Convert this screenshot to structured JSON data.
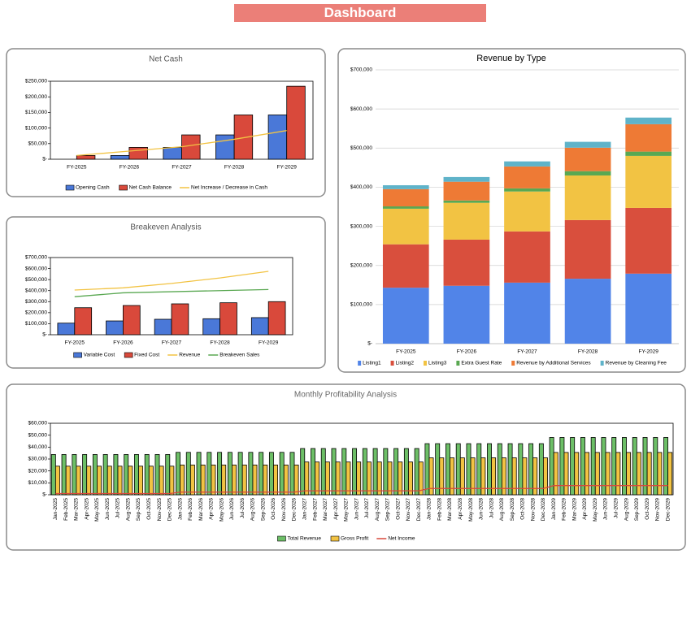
{
  "header": {
    "title": "Dashboard"
  },
  "chart_data": [
    {
      "type": "bar",
      "title": "Net Cash",
      "categories": [
        "FY-2025",
        "FY-2026",
        "FY-2027",
        "FY-2028",
        "FY-2029"
      ],
      "series": [
        {
          "name": "Opening Cash",
          "color": "#4a78d8",
          "values": [
            0,
            12000,
            38000,
            78000,
            142000
          ]
        },
        {
          "name": "Net Cash Balance",
          "color": "#d9493b",
          "values": [
            12000,
            38000,
            78000,
            142000,
            234000
          ]
        },
        {
          "name": "Net Increase / Decrease in Cash",
          "type": "line",
          "color": "#f2c343",
          "values": [
            12000,
            26000,
            40000,
            64000,
            92000
          ]
        }
      ],
      "ylim": [
        0,
        250000
      ],
      "yticks": [
        {
          "value": 0,
          "label": "$-"
        },
        {
          "value": 50000,
          "label": "$50,000"
        },
        {
          "value": 100000,
          "label": "$100,000"
        },
        {
          "value": 150000,
          "label": "$150,000"
        },
        {
          "value": 200000,
          "label": "$200,000"
        },
        {
          "value": 250000,
          "label": "$250,000"
        }
      ],
      "grid": false,
      "legend": "bottom"
    },
    {
      "type": "bar",
      "title": "Breakeven Analysis",
      "categories": [
        "FY-2025",
        "FY-2026",
        "FY-2027",
        "FY-2028",
        "FY-2029"
      ],
      "series": [
        {
          "name": "Variable Cost",
          "color": "#4a78d8",
          "values": [
            105000,
            125000,
            140000,
            145000,
            155000
          ]
        },
        {
          "name": "Fixed Cost",
          "color": "#d9493b",
          "values": [
            245000,
            265000,
            280000,
            290000,
            300000
          ]
        },
        {
          "name": "Revenue",
          "type": "line",
          "color": "#f2c343",
          "values": [
            405000,
            425000,
            465000,
            515000,
            575000
          ]
        },
        {
          "name": "Breakeven Sales",
          "type": "line",
          "color": "#5aa852",
          "values": [
            345000,
            380000,
            390000,
            400000,
            410000
          ]
        }
      ],
      "ylim": [
        0,
        700000
      ],
      "yticks": [
        {
          "value": 0,
          "label": "$-"
        },
        {
          "value": 100000,
          "label": "$100,000"
        },
        {
          "value": 200000,
          "label": "$200,000"
        },
        {
          "value": 300000,
          "label": "$300,000"
        },
        {
          "value": 400000,
          "label": "$400,000"
        },
        {
          "value": 500000,
          "label": "$500,000"
        },
        {
          "value": 600000,
          "label": "$600,000"
        },
        {
          "value": 700000,
          "label": "$700,000"
        }
      ],
      "grid": false,
      "legend": "bottom"
    },
    {
      "type": "bar",
      "stacked": true,
      "title": "Revenue by Type",
      "categories": [
        "FY-2025",
        "FY-2026",
        "FY-2027",
        "FY-2028",
        "FY-2029"
      ],
      "series": [
        {
          "name": "Listing1",
          "color": "#5184e8",
          "values": [
            143000,
            148000,
            156000,
            166000,
            179000
          ]
        },
        {
          "name": "Listing2",
          "color": "#d94f3d",
          "values": [
            111000,
            118000,
            131000,
            150000,
            168000
          ]
        },
        {
          "name": "Listing3",
          "color": "#f2c343",
          "values": [
            91000,
            94000,
            102000,
            114000,
            133000
          ]
        },
        {
          "name": "Extra Guest Rate",
          "color": "#5aa852",
          "values": [
            6000,
            6000,
            8000,
            11000,
            11000
          ]
        },
        {
          "name": "Revenue by Additional Services",
          "color": "#ee7a35",
          "values": [
            44000,
            48000,
            56000,
            60000,
            70000
          ]
        },
        {
          "name": "Revenue by Cleaning Fee",
          "color": "#5fb3c9",
          "values": [
            10000,
            12000,
            13000,
            15000,
            17000
          ]
        }
      ],
      "ylim": [
        0,
        700000
      ],
      "yticks": [
        {
          "value": 0,
          "label": "$-"
        },
        {
          "value": 100000,
          "label": "$100,000"
        },
        {
          "value": 200000,
          "label": "$200,000"
        },
        {
          "value": 300000,
          "label": "$300,000"
        },
        {
          "value": 400000,
          "label": "$400,000"
        },
        {
          "value": 500000,
          "label": "$500,000"
        },
        {
          "value": 600000,
          "label": "$600,000"
        },
        {
          "value": 700000,
          "label": "$700,000"
        }
      ],
      "grid": true,
      "legend": "bottom"
    },
    {
      "type": "bar",
      "title": "Monthly Profitability Analysis",
      "categories": [
        "Jan-2025",
        "Feb-2025",
        "Mar-2025",
        "Apr-2025",
        "May-2025",
        "Jun-2025",
        "Jul-2025",
        "Aug-2025",
        "Sep-2025",
        "Oct-2025",
        "Nov-2025",
        "Dec-2025",
        "Jan-2026",
        "Feb-2026",
        "Mar-2026",
        "Apr-2026",
        "May-2026",
        "Jun-2026",
        "Jul-2026",
        "Aug-2026",
        "Sep-2026",
        "Oct-2026",
        "Nov-2026",
        "Dec-2026",
        "Jan-2027",
        "Feb-2027",
        "Mar-2027",
        "Apr-2027",
        "May-2027",
        "Jun-2027",
        "Jul-2027",
        "Aug-2027",
        "Sep-2027",
        "Oct-2027",
        "Nov-2027",
        "Dec-2027",
        "Jan-2028",
        "Feb-2028",
        "Mar-2028",
        "Apr-2028",
        "May-2028",
        "Jun-2028",
        "Jul-2028",
        "Aug-2028",
        "Sep-2028",
        "Oct-2028",
        "Nov-2028",
        "Dec-2028",
        "Jan-2029",
        "Feb-2029",
        "Mar-2029",
        "Apr-2029",
        "May-2029",
        "Jun-2029",
        "Jul-2029",
        "Aug-2029",
        "Sep-2029",
        "Oct-2029",
        "Nov-2029",
        "Dec-2029"
      ],
      "series": [
        {
          "name": "Total Revenue",
          "color": "#6dbf67",
          "values": [
            33800,
            33800,
            33800,
            33800,
            33800,
            33800,
            33800,
            33800,
            33800,
            33800,
            33800,
            33800,
            35600,
            35600,
            35600,
            35600,
            35600,
            35600,
            35600,
            35600,
            35600,
            35600,
            35600,
            35600,
            38800,
            38800,
            38800,
            38800,
            38800,
            38800,
            38800,
            38800,
            38800,
            38800,
            38800,
            38800,
            42900,
            42900,
            42900,
            42900,
            42900,
            42900,
            42900,
            42900,
            42900,
            42900,
            42900,
            42900,
            48100,
            48100,
            48100,
            48100,
            48100,
            48100,
            48100,
            48100,
            48100,
            48100,
            48100,
            48100
          ]
        },
        {
          "name": "Gross Profit",
          "color": "#f2c343",
          "values": [
            24000,
            24000,
            24000,
            24000,
            24000,
            24000,
            24000,
            24000,
            24000,
            24000,
            24000,
            24000,
            25000,
            25000,
            25000,
            25000,
            25000,
            25000,
            25000,
            25000,
            25000,
            25000,
            25000,
            25000,
            27500,
            27500,
            27500,
            27500,
            27500,
            27500,
            27500,
            27500,
            27500,
            27500,
            27500,
            27500,
            31000,
            31000,
            31000,
            31000,
            31000,
            31000,
            31000,
            31000,
            31000,
            31000,
            31000,
            31000,
            35500,
            35500,
            35500,
            35500,
            35500,
            35500,
            35500,
            35500,
            35500,
            35500,
            35500,
            35500
          ]
        },
        {
          "name": "Net Income",
          "type": "line",
          "color": "#d9493b",
          "values": [
            1000,
            1000,
            1000,
            1000,
            1000,
            1000,
            1000,
            1000,
            1000,
            1000,
            1000,
            1000,
            2200,
            2200,
            2200,
            2200,
            2200,
            2200,
            2200,
            2200,
            2200,
            2200,
            2200,
            2200,
            3300,
            3300,
            3300,
            3300,
            3300,
            3300,
            3300,
            3300,
            3300,
            3300,
            3300,
            3300,
            5300,
            5300,
            5300,
            5300,
            5300,
            5300,
            5300,
            5300,
            5300,
            5300,
            5300,
            5300,
            7700,
            7700,
            7700,
            7700,
            7700,
            7700,
            7700,
            7700,
            7700,
            7700,
            7700,
            7700
          ]
        }
      ],
      "ylim": [
        0,
        60000
      ],
      "yticks": [
        {
          "value": 0,
          "label": "$-"
        },
        {
          "value": 10000,
          "label": "$10,000"
        },
        {
          "value": 20000,
          "label": "$20,000"
        },
        {
          "value": 30000,
          "label": "$30,000"
        },
        {
          "value": 40000,
          "label": "$40,000"
        },
        {
          "value": 50000,
          "label": "$50,000"
        },
        {
          "value": 60000,
          "label": "$60,000"
        }
      ],
      "grid": false,
      "legend": "bottom"
    }
  ]
}
